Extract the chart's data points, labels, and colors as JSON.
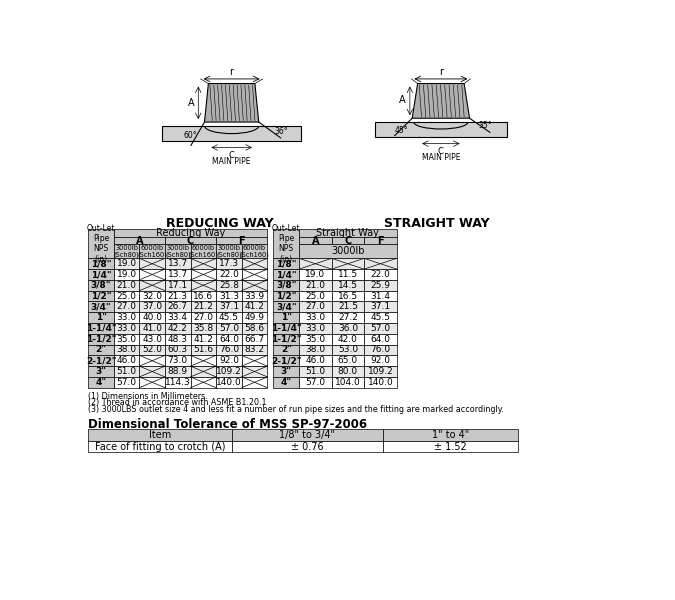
{
  "reducing_rows": [
    [
      "1/8\"",
      "19.0",
      "",
      "13.7",
      "",
      "17.3",
      ""
    ],
    [
      "1/4\"",
      "19.0",
      "",
      "13.7",
      "",
      "22.0",
      ""
    ],
    [
      "3/8\"",
      "21.0",
      "",
      "17.1",
      "",
      "25.8",
      ""
    ],
    [
      "1/2\"",
      "25.0",
      "32.0",
      "21.3",
      "16.6",
      "31.3",
      "33.9"
    ],
    [
      "3/4\"",
      "27.0",
      "37.0",
      "26.7",
      "21.2",
      "37.1",
      "41.2"
    ],
    [
      "1\"",
      "33.0",
      "40.0",
      "33.4",
      "27.0",
      "45.5",
      "49.9"
    ],
    [
      "1-1/4\"",
      "33.0",
      "41.0",
      "42.2",
      "35.8",
      "57.0",
      "58.6"
    ],
    [
      "1-1/2\"",
      "35.0",
      "43.0",
      "48.3",
      "41.2",
      "64.0",
      "66.7"
    ],
    [
      "2\"",
      "38.0",
      "52.0",
      "60.3",
      "51.6",
      "76.0",
      "83.2"
    ],
    [
      "2-1/2\"",
      "46.0",
      "",
      "73.0",
      "",
      "92.0",
      ""
    ],
    [
      "3\"",
      "51.0",
      "",
      "88.9",
      "",
      "109.2",
      ""
    ],
    [
      "4\"",
      "57.0",
      "",
      "114.3",
      "",
      "140.0",
      ""
    ]
  ],
  "straight_rows": [
    [
      "1/8\"",
      "",
      "",
      ""
    ],
    [
      "1/4\"",
      "19.0",
      "11.5",
      "22.0"
    ],
    [
      "3/8\"",
      "21.0",
      "14.5",
      "25.9"
    ],
    [
      "1/2\"",
      "25.0",
      "16.5",
      "31.4"
    ],
    [
      "3/4\"",
      "27.0",
      "21.5",
      "37.1"
    ],
    [
      "1\"",
      "33.0",
      "27.2",
      "45.5"
    ],
    [
      "1-1/4\"",
      "33.0",
      "36.0",
      "57.0"
    ],
    [
      "1-1/2\"",
      "35.0",
      "42.0",
      "64.0"
    ],
    [
      "2\"",
      "38.0",
      "53.0",
      "76.0"
    ],
    [
      "2-1/2\"",
      "46.0",
      "65.0",
      "92.0"
    ],
    [
      "3\"",
      "51.0",
      "80.0",
      "109.2"
    ],
    [
      "4\"",
      "57.0",
      "104.0",
      "140.0"
    ]
  ],
  "notes": [
    "(1) Dimensions in Millimeters.",
    "(2) Thread in accordance with ASME B1.20.1",
    "(3) 3000LBS outlet size 4 and less fit a number of run pipe sizes and the fitting are marked accordingly."
  ],
  "tolerance_title": "Dimensional Tolerance of MSS SP-97-2006",
  "tolerance_col1": "Item",
  "tolerance_col2": "1/8\" to 3/4\"",
  "tolerance_col3": "1\" to 4\"",
  "tolerance_row_label": "Face of fitting to crotch (A)",
  "tolerance_val2": "± 0.76",
  "tolerance_val3": "± 1.52",
  "header_bg": "#c8c8c8",
  "row_bg_odd": "#e8e8e8",
  "row_bg_even": "#ffffff"
}
